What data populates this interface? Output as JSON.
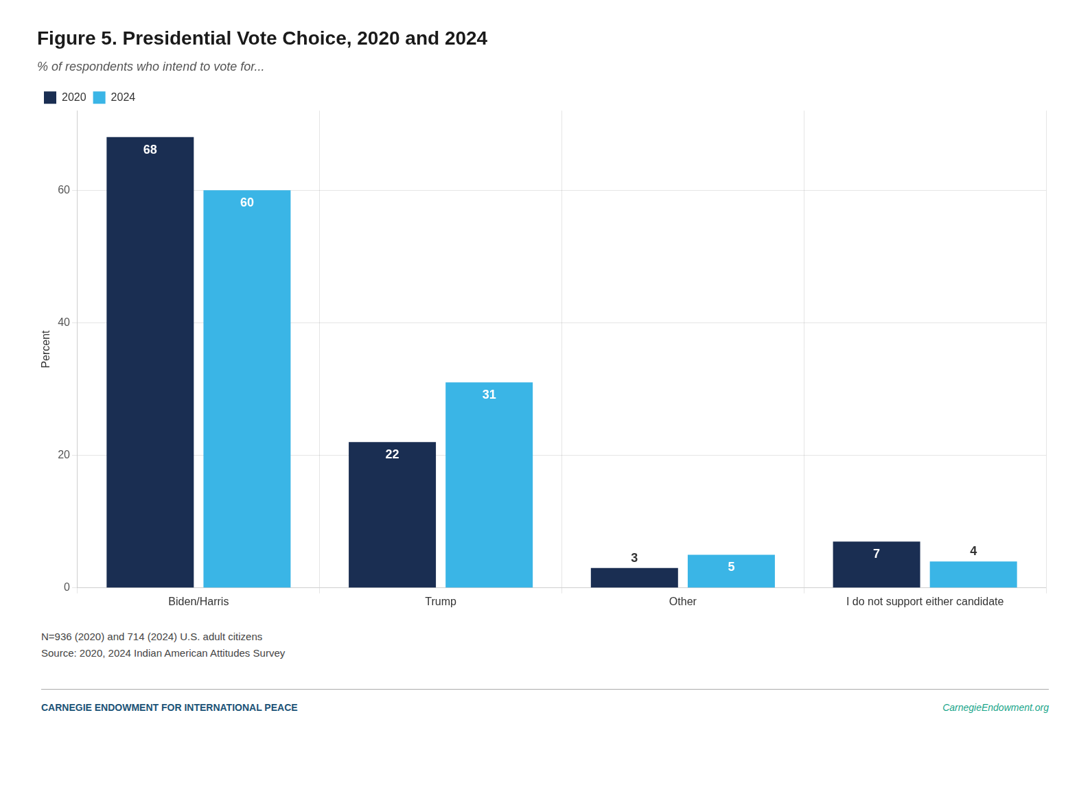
{
  "chart_data": {
    "type": "bar",
    "title": "Figure 5. Presidential Vote Choice, 2020 and 2024",
    "subtitle": "% of respondents who intend to vote for...",
    "categories": [
      "Biden/Harris",
      "Trump",
      "Other",
      "I do not support either candidate"
    ],
    "series": [
      {
        "name": "2020",
        "color": "#1a2e52",
        "values": [
          68,
          22,
          3,
          7
        ]
      },
      {
        "name": "2024",
        "color": "#3ab5e6",
        "values": [
          60,
          31,
          5,
          4
        ]
      }
    ],
    "ylabel": "Percent",
    "ylim": [
      0,
      72
    ],
    "yticks": [
      0,
      20,
      40,
      60
    ],
    "grid": true,
    "legend": "upper left",
    "data_labels": true,
    "footnotes": [
      "N=936 (2020) and 714 (2024) U.S. adult citizens",
      "Source: 2020, 2024 Indian American Attitudes Survey"
    ],
    "footer": [
      {
        "text": "CARNEGIE ENDOWMENT FOR INTERNATIONAL PEACE",
        "color": "#1a5276"
      },
      {
        "text": "CarnegieEndowment.org",
        "color": "#17a589"
      }
    ]
  }
}
